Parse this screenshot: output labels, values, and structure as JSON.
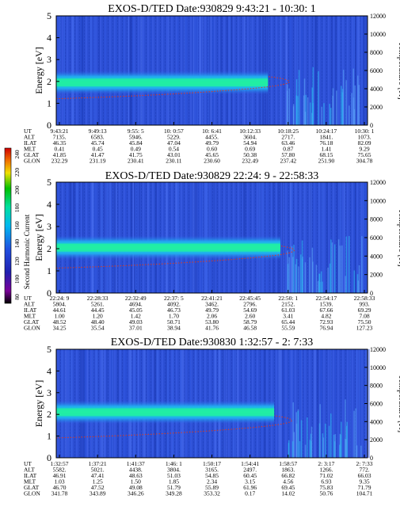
{
  "colorbar": {
    "label": "Second Harmonic Current",
    "ticks": [
      "240",
      "220",
      "200",
      "180",
      "160",
      "140",
      "120",
      "100",
      "80"
    ],
    "colors": [
      "#000000",
      "#7a0098",
      "#2020b0",
      "#2050e0",
      "#00b8f0",
      "#00e0a0",
      "#00c000",
      "#f0e000",
      "#f07000",
      "#d00000"
    ]
  },
  "chart_data": [
    {
      "type": "heatmap",
      "title": "EXOS-D/TED   Date:930829  9:43:21 - 10:30: 1",
      "ylabel": "Energy [eV]",
      "ylabel2": "Temperature [K]",
      "ylim": [
        0,
        5
      ],
      "ylim2": [
        0,
        12000
      ],
      "yticks": [
        "0",
        "1",
        "2",
        "3",
        "4",
        "5"
      ],
      "yticks2": [
        "0",
        "2000",
        "4000",
        "6000",
        "8000",
        "10000",
        "12000"
      ],
      "x_ticks": [
        "9:43:21",
        "9:49:13",
        "9:55: 5",
        "10: 0:57",
        "10: 6:41",
        "10:12:33",
        "10:18:25",
        "10:24:17",
        "10:30: 1"
      ],
      "rows": [
        {
          "label": "UT",
          "values": [
            "9:43:21",
            "9:49:13",
            "9:55: 5",
            "10: 0:57",
            "10: 6:41",
            "10:12:33",
            "10:18:25",
            "10:24:17",
            "10:30: 1"
          ]
        },
        {
          "label": "ALT",
          "values": [
            "7135.",
            "6583.",
            "5946.",
            "5229.",
            "4455.",
            "3604.",
            "2717.",
            "1841.",
            "1073."
          ]
        },
        {
          "label": "ILAT",
          "values": [
            "46.35",
            "45.74",
            "45.84",
            "47.04",
            "49.79",
            "54.94",
            "63.46",
            "76.18",
            "82.09"
          ]
        },
        {
          "label": "MLT",
          "values": [
            "0.41",
            "0.45",
            "0.49",
            "0.54",
            "0.60",
            "0.69",
            "0.87",
            "1.41",
            "9.29"
          ]
        },
        {
          "label": "GLAT",
          "values": [
            "41.85",
            "41.47",
            "41.75",
            "43.01",
            "45.65",
            "50.38",
            "57.80",
            "68.15",
            "75.65"
          ]
        },
        {
          "label": "GLON",
          "values": [
            "232.29",
            "231.19",
            "230.41",
            "230.11",
            "230.60",
            "232.49",
            "237.42",
            "251.90",
            "304.78"
          ]
        }
      ],
      "band_center_ev": 1.95,
      "band_end_frac": 0.68,
      "temperature_k": 2900
    },
    {
      "type": "heatmap",
      "title": "EXOS-D/TED   Date:930829  22:24: 9 - 22:58:33",
      "ylabel": "Energy [eV]",
      "ylabel2": "Temperature [K]",
      "ylim": [
        0,
        5
      ],
      "ylim2": [
        0,
        12000
      ],
      "yticks": [
        "0",
        "1",
        "2",
        "3",
        "4",
        "5"
      ],
      "yticks2": [
        "0",
        "2000",
        "4000",
        "6000",
        "8000",
        "10000",
        "12000"
      ],
      "x_ticks": [
        "22:24: 9",
        "22:28:33",
        "22:32:49",
        "22:37: 5",
        "22:41:21",
        "22:45:45",
        "22:50: 1",
        "22:54:17",
        "22:58:33"
      ],
      "rows": [
        {
          "label": "UT",
          "values": [
            "22:24: 9",
            "22:28:33",
            "22:32:49",
            "22:37: 5",
            "22:41:21",
            "22:45:45",
            "22:50: 1",
            "22:54:17",
            "22:58:33"
          ]
        },
        {
          "label": "ALT",
          "values": [
            "5804.",
            "5261.",
            "4694.",
            "4092.",
            "3462.",
            "2796.",
            "2152.",
            "1539.",
            "993."
          ]
        },
        {
          "label": "ILAT",
          "values": [
            "44.61",
            "44.45",
            "45.05",
            "46.73",
            "49.79",
            "54.69",
            "61.03",
            "67.66",
            "69.29"
          ]
        },
        {
          "label": "MLT",
          "values": [
            "1.00",
            "1.20",
            "1.42",
            "1.70",
            "2.06",
            "2.60",
            "3.41",
            "4.82",
            "7.08"
          ]
        },
        {
          "label": "GLAT",
          "values": [
            "48.52",
            "48.40",
            "49.03",
            "50.71",
            "53.80",
            "58.79",
            "65.44",
            "72.93",
            "75.50"
          ]
        },
        {
          "label": "GLON",
          "values": [
            "34.25",
            "35.54",
            "37.01",
            "38.94",
            "41.76",
            "46.58",
            "55.59",
            "76.94",
            "127.23"
          ]
        }
      ],
      "band_center_ev": 2.05,
      "band_end_frac": 0.72,
      "temperature_k": 2700
    },
    {
      "type": "heatmap",
      "title": "EXOS-D/TED   Date:930830  1:32:57 - 2: 7:33",
      "ylabel": "Energy [eV]",
      "ylabel2": "Temperature [K]",
      "ylim": [
        0,
        5
      ],
      "ylim2": [
        0,
        12000
      ],
      "yticks": [
        "0",
        "1",
        "2",
        "3",
        "4",
        "5"
      ],
      "yticks2": [
        "0",
        "2000",
        "4000",
        "6000",
        "8000",
        "10000",
        "12000"
      ],
      "x_ticks": [
        "1:32:57",
        "1:37:21",
        "1:41:37",
        "1:46: 1",
        "1:50:17",
        "1:54:41",
        "1:58:57",
        "2: 3:17",
        "2: 7:33"
      ],
      "rows": [
        {
          "label": "UT",
          "values": [
            "1:32:57",
            "1:37:21",
            "1:41:37",
            "1:46: 1",
            "1:50:17",
            "1:54:41",
            "1:58:57",
            "2: 3:17",
            "2: 7:33"
          ]
        },
        {
          "label": "ALT",
          "values": [
            "5582.",
            "5021.",
            "4438.",
            "3804.",
            "3165.",
            "2497.",
            "1863.",
            "1266.",
            "772."
          ]
        },
        {
          "label": "ILAT",
          "values": [
            "46.91",
            "47.41",
            "48.63",
            "51.03",
            "54.85",
            "60.45",
            "66.82",
            "71.02",
            "66.03"
          ]
        },
        {
          "label": "MLT",
          "values": [
            "1.03",
            "1.25",
            "1.50",
            "1.85",
            "2.34",
            "3.15",
            "4.56",
            "6.93",
            "9.35"
          ]
        },
        {
          "label": "GLAT",
          "values": [
            "46.70",
            "47.52",
            "49.08",
            "51.79",
            "55.89",
            "61.96",
            "69.45",
            "75.83",
            "71.79"
          ]
        },
        {
          "label": "GLON",
          "values": [
            "341.78",
            "343.89",
            "346.26",
            "349.28",
            "353.32",
            "0.17",
            "14.02",
            "50.76",
            "104.71"
          ]
        }
      ],
      "band_center_ev": 2.1,
      "band_end_frac": 0.7,
      "temperature_k": 2200
    }
  ]
}
